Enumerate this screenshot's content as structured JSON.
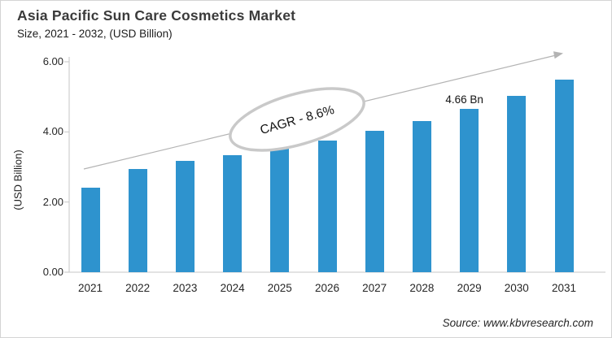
{
  "header": {
    "title": "Asia Pacific Sun Care Cosmetics Market",
    "subtitle": "Size, 2021 - 2032, (USD Billion)"
  },
  "chart_data": {
    "type": "bar",
    "categories": [
      "2021",
      "2022",
      "2023",
      "2024",
      "2025",
      "2026",
      "2027",
      "2028",
      "2029",
      "2030",
      "2031"
    ],
    "values": [
      2.42,
      2.94,
      3.18,
      3.34,
      3.53,
      3.75,
      4.03,
      4.3,
      4.66,
      5.03,
      5.48
    ],
    "title": "Asia Pacific Sun Care Cosmetics Market Size, 2021 - 2032, (USD Billion)",
    "xlabel": "",
    "ylabel": "(USD Billion)",
    "ylim": [
      0,
      6
    ],
    "yticks": [
      "0.00",
      "2.00",
      "4.00",
      "6.00"
    ],
    "grid": "off",
    "legend": "none",
    "bar_color": "#2E93CE",
    "annotations": {
      "cagr_label": "CAGR - 8.6%",
      "point_label": {
        "text": "4.66 Bn",
        "category": "2029"
      },
      "trend_arrow": "up-right"
    }
  },
  "footer": {
    "source": "Source: www.kbvresearch.com"
  }
}
